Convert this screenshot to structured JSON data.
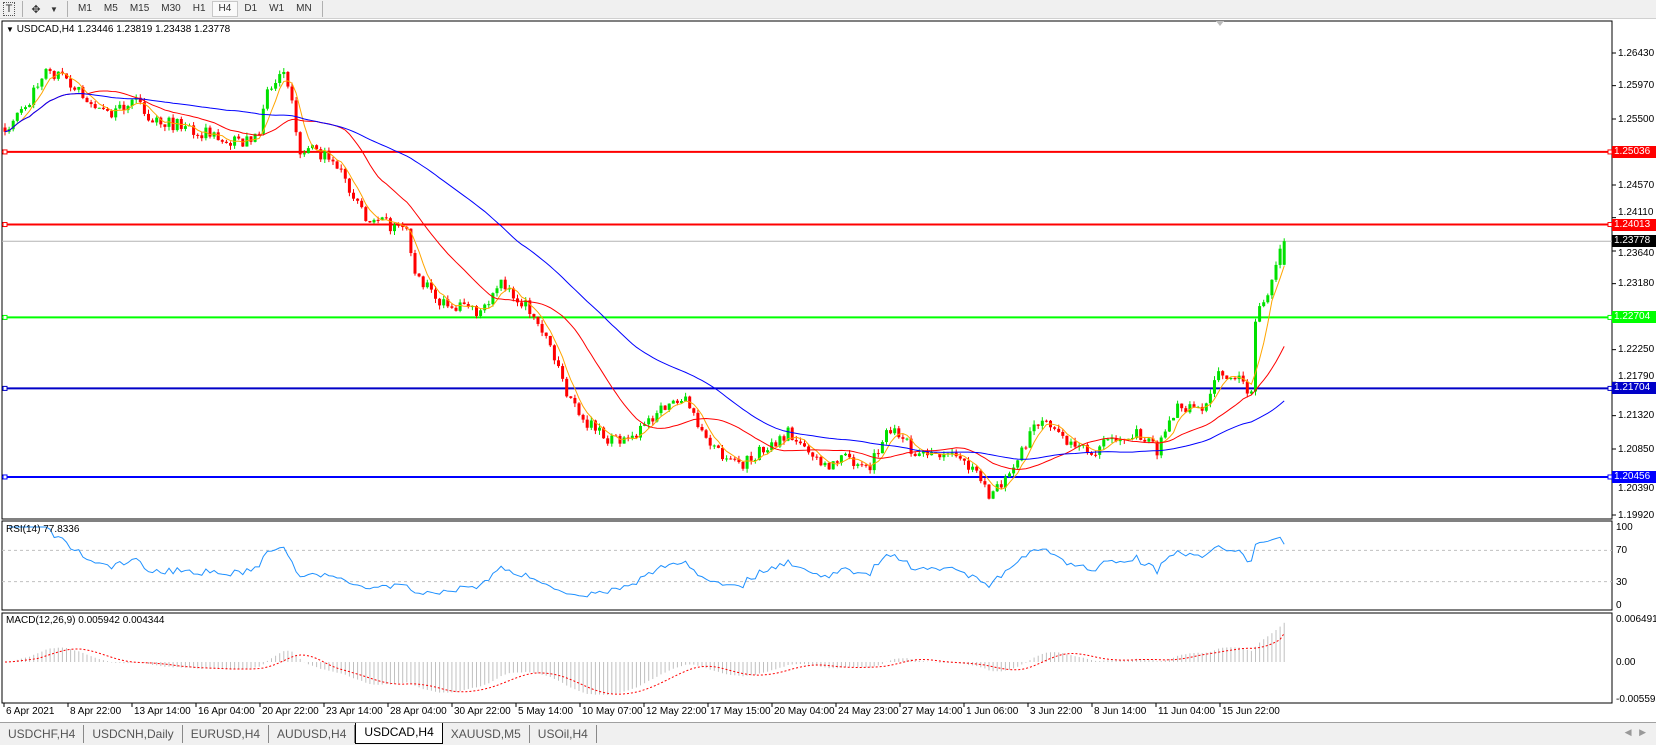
{
  "toolbar": {
    "icons": [
      "text-tool-icon",
      "cursor-tool-icon",
      "chevron-down-icon"
    ],
    "text_tool_glyph": "T",
    "timeframes": [
      "M1",
      "M5",
      "M15",
      "M30",
      "H1",
      "H4",
      "D1",
      "W1",
      "MN"
    ],
    "active_timeframe": "H4"
  },
  "chart": {
    "header": "USDCAD,H4  1.23446 1.23819 1.23438 1.23778",
    "price_ticks": [
      "1.26430",
      "1.25970",
      "1.25500",
      "1.24570",
      "1.24110",
      "1.23640",
      "1.23180",
      "1.22250",
      "1.21790",
      "1.21320",
      "1.20850",
      "1.20390",
      "1.19920"
    ],
    "bid": "1.23778",
    "levels": [
      {
        "value": "1.25036",
        "color": "#ff0000"
      },
      {
        "value": "1.24013",
        "color": "#ff0000"
      },
      {
        "value": "1.22704",
        "color": "#00ff00"
      },
      {
        "value": "1.21704",
        "color": "#0000c8"
      },
      {
        "value": "1.20456",
        "color": "#0000ff"
      }
    ],
    "time_labels": [
      "6 Apr 2021",
      "8 Apr 22:00",
      "13 Apr 14:00",
      "16 Apr 04:00",
      "20 Apr 22:00",
      "23 Apr 14:00",
      "28 Apr 04:00",
      "30 Apr 22:00",
      "5 May 14:00",
      "10 May 07:00",
      "12 May 22:00",
      "17 May 15:00",
      "20 May 04:00",
      "24 May 23:00",
      "27 May 14:00",
      "1 Jun 06:00",
      "3 Jun 22:00",
      "8 Jun 14:00",
      "11 Jun 04:00",
      "15 Jun 22:00"
    ],
    "colors": {
      "bull": "#00e000",
      "bear": "#ff0000",
      "ma_fast": "#ffa500",
      "ma_mid": "#ff0000",
      "ma_slow": "#0000ff",
      "rsi": "#1e90ff",
      "macd_hist": "#c0c0c0",
      "macd_signal": "#ff0000"
    }
  },
  "rsi": {
    "label": "RSI(14) 77.8336",
    "ticks": [
      "100",
      "70",
      "30",
      "0"
    ]
  },
  "macd": {
    "label": "MACD(12,26,9) 0.005942 0.004344",
    "ticks": [
      "0.006491",
      "0.00",
      "-0.005593"
    ]
  },
  "chart_data": {
    "type": "candlestick",
    "symbol": "USDCAD",
    "timeframe": "H4",
    "ylim": [
      1.1992,
      1.2643
    ],
    "last_bar": {
      "open": 1.23446,
      "high": 1.23819,
      "low": 1.23438,
      "close": 1.23778
    },
    "close_path": [
      [
        0,
        1.2532
      ],
      [
        5,
        1.2569
      ],
      [
        10,
        1.2613
      ],
      [
        15,
        1.2606
      ],
      [
        21,
        1.2569
      ],
      [
        26,
        1.2555
      ],
      [
        31,
        1.2578
      ],
      [
        36,
        1.255
      ],
      [
        41,
        1.2543
      ],
      [
        46,
        1.2536
      ],
      [
        52,
        1.2522
      ],
      [
        57,
        1.2515
      ],
      [
        62,
        1.2529
      ],
      [
        64,
        1.2591
      ],
      [
        68,
        1.2613
      ],
      [
        70,
        1.2569
      ],
      [
        72,
        1.2509
      ],
      [
        77,
        1.2501
      ],
      [
        82,
        1.248
      ],
      [
        88,
        1.2405
      ],
      [
        93,
        1.2402
      ],
      [
        98,
        1.239
      ],
      [
        100,
        1.2331
      ],
      [
        106,
        1.2294
      ],
      [
        111,
        1.2287
      ],
      [
        116,
        1.2279
      ],
      [
        121,
        1.2316
      ],
      [
        126,
        1.2294
      ],
      [
        131,
        1.2257
      ],
      [
        137,
        1.2167
      ],
      [
        142,
        1.2123
      ],
      [
        147,
        1.2101
      ],
      [
        152,
        1.2093
      ],
      [
        157,
        1.2123
      ],
      [
        162,
        1.2151
      ],
      [
        166,
        1.2158
      ],
      [
        170,
        1.2109
      ],
      [
        175,
        1.2078
      ],
      [
        180,
        1.2064
      ],
      [
        185,
        1.2085
      ],
      [
        191,
        1.2109
      ],
      [
        196,
        1.2078
      ],
      [
        201,
        1.2064
      ],
      [
        206,
        1.2071
      ],
      [
        211,
        1.2064
      ],
      [
        216,
        1.2116
      ],
      [
        222,
        1.2078
      ],
      [
        227,
        1.2085
      ],
      [
        232,
        1.2071
      ],
      [
        237,
        1.2057
      ],
      [
        240,
        1.2019
      ],
      [
        245,
        1.2043
      ],
      [
        250,
        1.2109
      ],
      [
        255,
        1.2123
      ],
      [
        260,
        1.2093
      ],
      [
        265,
        1.2078
      ],
      [
        270,
        1.2099
      ],
      [
        276,
        1.2109
      ],
      [
        281,
        1.2085
      ],
      [
        286,
        1.2151
      ],
      [
        291,
        1.2137
      ],
      [
        296,
        1.2189
      ],
      [
        301,
        1.2182
      ],
      [
        304,
        1.2167
      ],
      [
        305,
        1.2266
      ],
      [
        308,
        1.2309
      ],
      [
        310,
        1.2353
      ],
      [
        312,
        1.23778
      ]
    ],
    "rsi_levels": [
      70,
      30
    ],
    "rsi_last": 77.8336,
    "macd_last": 0.005942,
    "signal_last": 0.004344
  },
  "tabs": [
    {
      "label": "USDCHF,H4"
    },
    {
      "label": "USDCNH,Daily"
    },
    {
      "label": "EURUSD,H4"
    },
    {
      "label": "AUDUSD,H4"
    },
    {
      "label": "USDCAD,H4",
      "active": true
    },
    {
      "label": "XAUUSD,M5"
    },
    {
      "label": "USOil,H4"
    }
  ]
}
